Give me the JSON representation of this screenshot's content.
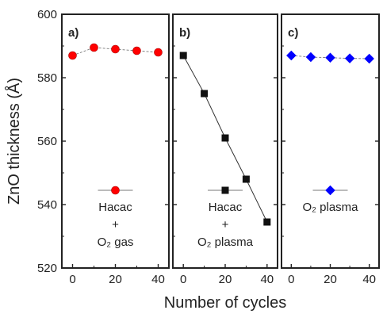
{
  "chart_data": {
    "type": "scatter",
    "xlabel": "Number of cycles",
    "ylabel": "ZnO thickness (Å)",
    "ylim": [
      520,
      600
    ],
    "yticks": [
      520,
      540,
      560,
      580,
      600
    ],
    "xticks": [
      0,
      20,
      40
    ],
    "xtick_labels": [
      "0",
      "20",
      "40"
    ],
    "ytick_labels": [
      "520",
      "540",
      "560",
      "580",
      "600"
    ],
    "xlim": [
      -5,
      45
    ],
    "panels": [
      {
        "label": "a)",
        "legend_lines": [
          "Hacac",
          "+",
          "O₂ gas"
        ],
        "marker": "circle",
        "color": "#ff0000",
        "connecting_line": "dashed",
        "x": [
          0,
          10,
          20,
          30,
          40
        ],
        "y": [
          587,
          589.5,
          589,
          588.5,
          588
        ]
      },
      {
        "label": "b)",
        "legend_lines": [
          "Hacac",
          "+",
          "O₂ plasma"
        ],
        "marker": "square",
        "color": "#111111",
        "connecting_line": "solid",
        "x": [
          0,
          10,
          20,
          30,
          40
        ],
        "y": [
          587,
          575,
          561,
          548,
          534.5
        ]
      },
      {
        "label": "c)",
        "legend_lines": [
          "O₂ plasma"
        ],
        "marker": "diamond",
        "color": "#0000ff",
        "connecting_line": "dashed",
        "x": [
          0,
          10,
          20,
          30,
          40
        ],
        "y": [
          587,
          586.5,
          586.3,
          586.1,
          586
        ]
      }
    ]
  }
}
